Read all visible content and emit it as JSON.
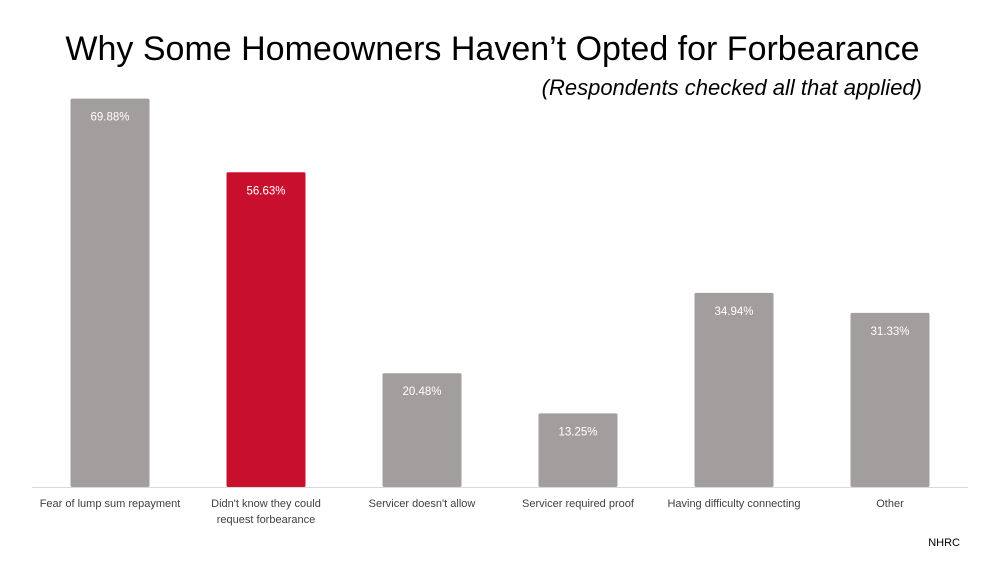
{
  "title": "Why Some Homeowners Haven’t Opted for Forbearance",
  "subtitle": "(Respondents checked all that applied)",
  "source": "NHRC",
  "colors": {
    "default_bar": "#a39e9e",
    "highlight_bar": "#c8102e",
    "label_text": "#ffffff",
    "axis": "#d9d9d9",
    "category_text": "#404040"
  },
  "chart_data": {
    "type": "bar",
    "categories": [
      [
        "Fear of lump sum repayment"
      ],
      [
        "Didn't know they could",
        "request forbearance"
      ],
      [
        "Servicer doesn't allow"
      ],
      [
        "Servicer required proof"
      ],
      [
        "Having difficulty connecting"
      ],
      [
        "Other"
      ]
    ],
    "values": [
      69.88,
      56.63,
      20.48,
      13.25,
      34.94,
      31.33
    ],
    "value_labels": [
      "69.88%",
      "56.63%",
      "20.48%",
      "13.25%",
      "34.94%",
      "31.33%"
    ],
    "highlight_index": 1,
    "ylim": [
      0,
      70
    ],
    "grid": false,
    "legend": "none",
    "xlabel": "",
    "ylabel": ""
  }
}
